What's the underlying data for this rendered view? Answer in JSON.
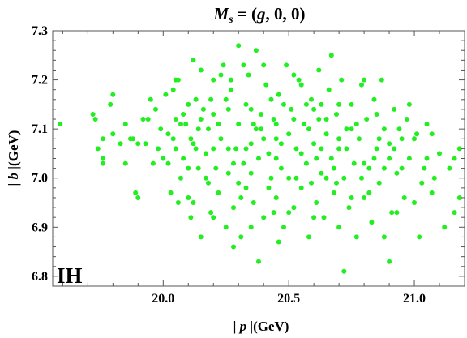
{
  "chart_data": {
    "type": "scatter",
    "title": "M_s = (g, 0, 0)",
    "title_parts": {
      "symbol": "M",
      "subscript": "s",
      "rest": " = (",
      "g": "g",
      "tail": ", 0, 0)"
    },
    "xlabel": "|p|(GeV)",
    "xlabel_parts": {
      "bar_left": "| ",
      "var": "p",
      "bar_right": " |",
      "unit": "(GeV)"
    },
    "ylabel": "|b|(GeV)",
    "ylabel_parts": {
      "bar_left": "| ",
      "var": "b",
      "bar_right": " |",
      "unit": "(GeV)"
    },
    "annotation": "IH",
    "marker_color": "#22ee22",
    "grid": false,
    "xlim": [
      19.56,
      21.2
    ],
    "ylim": [
      6.78,
      7.3
    ],
    "xticks": [
      20.0,
      20.5,
      21.0
    ],
    "xtick_labels": [
      "20.0",
      "20.5",
      "21.0"
    ],
    "yticks": [
      6.8,
      6.9,
      7.0,
      7.1,
      7.2,
      7.3
    ],
    "ytick_labels": [
      "6.8",
      "6.9",
      "7.0",
      "7.1",
      "7.2",
      "7.3"
    ],
    "series": [
      {
        "points": [
          [
            19.59,
            7.11
          ],
          [
            19.72,
            7.13
          ],
          [
            19.73,
            7.12
          ],
          [
            19.76,
            7.03
          ],
          [
            19.76,
            7.04
          ],
          [
            19.76,
            7.08
          ],
          [
            19.79,
            7.15
          ],
          [
            19.8,
            7.17
          ],
          [
            19.85,
            7.11
          ],
          [
            19.85,
            7.03
          ],
          [
            19.87,
            7.08
          ],
          [
            19.88,
            7.08
          ],
          [
            19.9,
            6.96
          ],
          [
            19.9,
            7.07
          ],
          [
            19.93,
            7.07
          ],
          [
            19.94,
            7.12
          ],
          [
            19.95,
            7.16
          ],
          [
            19.96,
            7.03
          ],
          [
            19.98,
            7.06
          ],
          [
            20.0,
            7.04
          ],
          [
            20.01,
            7.17
          ],
          [
            20.02,
            7.09
          ],
          [
            20.02,
            7.03
          ],
          [
            20.04,
            7.08
          ],
          [
            20.04,
            7.18
          ],
          [
            20.05,
            7.06
          ],
          [
            20.06,
            6.95
          ],
          [
            20.06,
            7.2
          ],
          [
            20.07,
            7.0
          ],
          [
            20.08,
            7.04
          ],
          [
            20.09,
            7.11
          ],
          [
            20.1,
            7.15
          ],
          [
            20.1,
            6.96
          ],
          [
            20.11,
            7.08
          ],
          [
            20.12,
            7.24
          ],
          [
            20.12,
            6.95
          ],
          [
            20.13,
            7.16
          ],
          [
            20.14,
            7.1
          ],
          [
            20.14,
            7.02
          ],
          [
            20.15,
            6.88
          ],
          [
            20.15,
            7.22
          ],
          [
            20.16,
            7.14
          ],
          [
            20.17,
            7.05
          ],
          [
            20.18,
            7.1
          ],
          [
            20.19,
            6.93
          ],
          [
            20.19,
            7.16
          ],
          [
            20.2,
            7.2
          ],
          [
            20.21,
            7.02
          ],
          [
            20.22,
            6.97
          ],
          [
            20.23,
            7.08
          ],
          [
            20.24,
            7.23
          ],
          [
            20.25,
            6.9
          ],
          [
            20.26,
            7.14
          ],
          [
            20.26,
            7.01
          ],
          [
            20.27,
            7.18
          ],
          [
            20.28,
            6.94
          ],
          [
            20.29,
            7.06
          ],
          [
            20.3,
            7.11
          ],
          [
            20.3,
            7.27
          ],
          [
            20.31,
            6.88
          ],
          [
            20.32,
            7.03
          ],
          [
            20.33,
            7.15
          ],
          [
            20.33,
            6.98
          ],
          [
            20.34,
            7.21
          ],
          [
            20.35,
            7.07
          ],
          [
            20.36,
            6.95
          ],
          [
            20.37,
            7.1
          ],
          [
            20.37,
            7.26
          ],
          [
            20.38,
            7.04
          ],
          [
            20.39,
            7.13
          ],
          [
            20.4,
            6.92
          ],
          [
            20.41,
            7.19
          ],
          [
            20.42,
            7.05
          ],
          [
            20.43,
            7.0
          ],
          [
            20.44,
            7.12
          ],
          [
            20.45,
            6.96
          ],
          [
            20.45,
            7.08
          ],
          [
            20.46,
            7.17
          ],
          [
            20.47,
            7.02
          ],
          [
            20.48,
            6.9
          ],
          [
            20.49,
            7.23
          ],
          [
            20.5,
            7.09
          ],
          [
            20.5,
            7.0
          ],
          [
            20.51,
            7.14
          ],
          [
            20.52,
            6.94
          ],
          [
            20.53,
            7.06
          ],
          [
            20.54,
            7.2
          ],
          [
            20.55,
            6.98
          ],
          [
            20.56,
            7.11
          ],
          [
            20.57,
            7.03
          ],
          [
            20.58,
            6.88
          ],
          [
            20.59,
            7.16
          ],
          [
            20.6,
            7.07
          ],
          [
            20.61,
            6.95
          ],
          [
            20.62,
            7.12
          ],
          [
            20.62,
            7.22
          ],
          [
            20.63,
            7.01
          ],
          [
            20.64,
            6.92
          ],
          [
            20.65,
            7.09
          ],
          [
            20.66,
            7.18
          ],
          [
            20.67,
            7.04
          ],
          [
            20.68,
            6.97
          ],
          [
            20.69,
            7.13
          ],
          [
            20.7,
            6.9
          ],
          [
            20.7,
            7.06
          ],
          [
            20.71,
            7.2
          ],
          [
            20.72,
            7.0
          ],
          [
            20.73,
            7.1
          ],
          [
            20.74,
            6.94
          ],
          [
            20.75,
            7.15
          ],
          [
            20.76,
            7.03
          ],
          [
            20.77,
            6.88
          ],
          [
            20.78,
            7.08
          ],
          [
            20.79,
            7.19
          ],
          [
            20.8,
            6.96
          ],
          [
            20.81,
            7.12
          ],
          [
            20.82,
            7.02
          ],
          [
            20.83,
            6.91
          ],
          [
            20.84,
            7.16
          ],
          [
            20.85,
            7.06
          ],
          [
            20.86,
            6.99
          ],
          [
            20.87,
            7.2
          ],
          [
            20.88,
            6.88
          ],
          [
            20.88,
            7.1
          ],
          [
            20.9,
            7.04
          ],
          [
            20.91,
            6.93
          ],
          [
            20.92,
            7.14
          ],
          [
            20.93,
            7.01
          ],
          [
            20.95,
            7.08
          ],
          [
            20.96,
            6.96
          ],
          [
            20.97,
            7.12
          ],
          [
            20.98,
            7.04
          ],
          [
            21.0,
            6.95
          ],
          [
            21.01,
            7.09
          ],
          [
            21.02,
            6.88
          ],
          [
            21.04,
            7.02
          ],
          [
            21.05,
            7.11
          ],
          [
            21.07,
            6.97
          ],
          [
            21.1,
            7.05
          ],
          [
            21.12,
            6.9
          ],
          [
            21.14,
            7.02
          ],
          [
            21.16,
            6.93
          ],
          [
            21.18,
            7.06
          ],
          [
            21.18,
            6.96
          ],
          [
            21.16,
            7.04
          ],
          [
            21.07,
            7.09
          ],
          [
            21.03,
            6.99
          ],
          [
            20.98,
            7.15
          ],
          [
            20.93,
            6.93
          ],
          [
            20.9,
            6.83
          ],
          [
            20.86,
            7.08
          ],
          [
            20.8,
            7.2
          ],
          [
            20.75,
            6.96
          ],
          [
            20.72,
            6.81
          ],
          [
            20.67,
            7.25
          ],
          [
            20.63,
            7.15
          ],
          [
            20.59,
            6.99
          ],
          [
            20.52,
            7.21
          ],
          [
            20.46,
            6.87
          ],
          [
            20.43,
            7.16
          ],
          [
            20.4,
            7.23
          ],
          [
            20.38,
            6.83
          ],
          [
            20.35,
            7.01
          ],
          [
            20.32,
            7.23
          ],
          [
            20.28,
            6.86
          ],
          [
            20.26,
            7.06
          ],
          [
            20.23,
            7.21
          ],
          [
            20.2,
            6.92
          ],
          [
            20.17,
            7.0
          ],
          [
            20.13,
            7.06
          ],
          [
            20.11,
            6.92
          ],
          [
            20.08,
            7.13
          ],
          [
            20.05,
            7.2
          ],
          [
            20.03,
            6.97
          ],
          [
            19.99,
            7.1
          ],
          [
            19.97,
            7.14
          ],
          [
            19.92,
            7.12
          ],
          [
            19.89,
            6.97
          ],
          [
            19.83,
            7.07
          ],
          [
            19.8,
            7.09
          ],
          [
            19.74,
            7.06
          ],
          [
            20.3,
            6.99
          ],
          [
            20.35,
            6.9
          ],
          [
            20.4,
            7.08
          ],
          [
            20.45,
            7.11
          ],
          [
            20.5,
            6.93
          ],
          [
            20.55,
            7.05
          ],
          [
            20.6,
            7.14
          ],
          [
            20.65,
            7.0
          ],
          [
            20.7,
            7.08
          ],
          [
            20.75,
            7.1
          ],
          [
            20.8,
            7.03
          ],
          [
            20.85,
            7.13
          ],
          [
            20.9,
            7.07
          ],
          [
            20.95,
            7.02
          ],
          [
            21.0,
            7.08
          ],
          [
            20.25,
            7.16
          ],
          [
            20.2,
            7.06
          ],
          [
            20.15,
            7.12
          ],
          [
            20.1,
            7.02
          ],
          [
            20.05,
            7.12
          ],
          [
            20.6,
            6.92
          ],
          [
            20.55,
            7.19
          ],
          [
            20.45,
            7.04
          ],
          [
            20.35,
            7.14
          ],
          [
            20.28,
            7.03
          ],
          [
            20.22,
            7.11
          ],
          [
            20.18,
            6.99
          ],
          [
            20.65,
            7.12
          ],
          [
            20.7,
            7.15
          ],
          [
            20.82,
            6.97
          ],
          [
            20.88,
            7.02
          ],
          [
            20.58,
            7.1
          ],
          [
            20.48,
            7.15
          ],
          [
            20.42,
            6.98
          ],
          [
            20.33,
            7.06
          ],
          [
            20.27,
            7.2
          ],
          [
            20.39,
            7.1
          ],
          [
            20.47,
            7.07
          ],
          [
            20.53,
            7.0
          ],
          [
            20.61,
            7.04
          ],
          [
            20.69,
            6.99
          ],
          [
            20.77,
            7.11
          ],
          [
            20.84,
            7.04
          ],
          [
            20.92,
            7.06
          ],
          [
            21.05,
            7.04
          ],
          [
            20.12,
            7.07
          ],
          [
            20.07,
            7.11
          ],
          [
            20.2,
            7.13
          ],
          [
            20.31,
            6.96
          ],
          [
            20.36,
            7.11
          ],
          [
            20.44,
            6.93
          ],
          [
            20.52,
            7.12
          ],
          [
            20.57,
            7.15
          ],
          [
            20.63,
            7.06
          ],
          [
            20.68,
            7.02
          ],
          [
            20.73,
            7.06
          ],
          [
            20.79,
            7.0
          ],
          [
            20.94,
            7.1
          ],
          [
            21.08,
            7.0
          ]
        ]
      }
    ]
  }
}
